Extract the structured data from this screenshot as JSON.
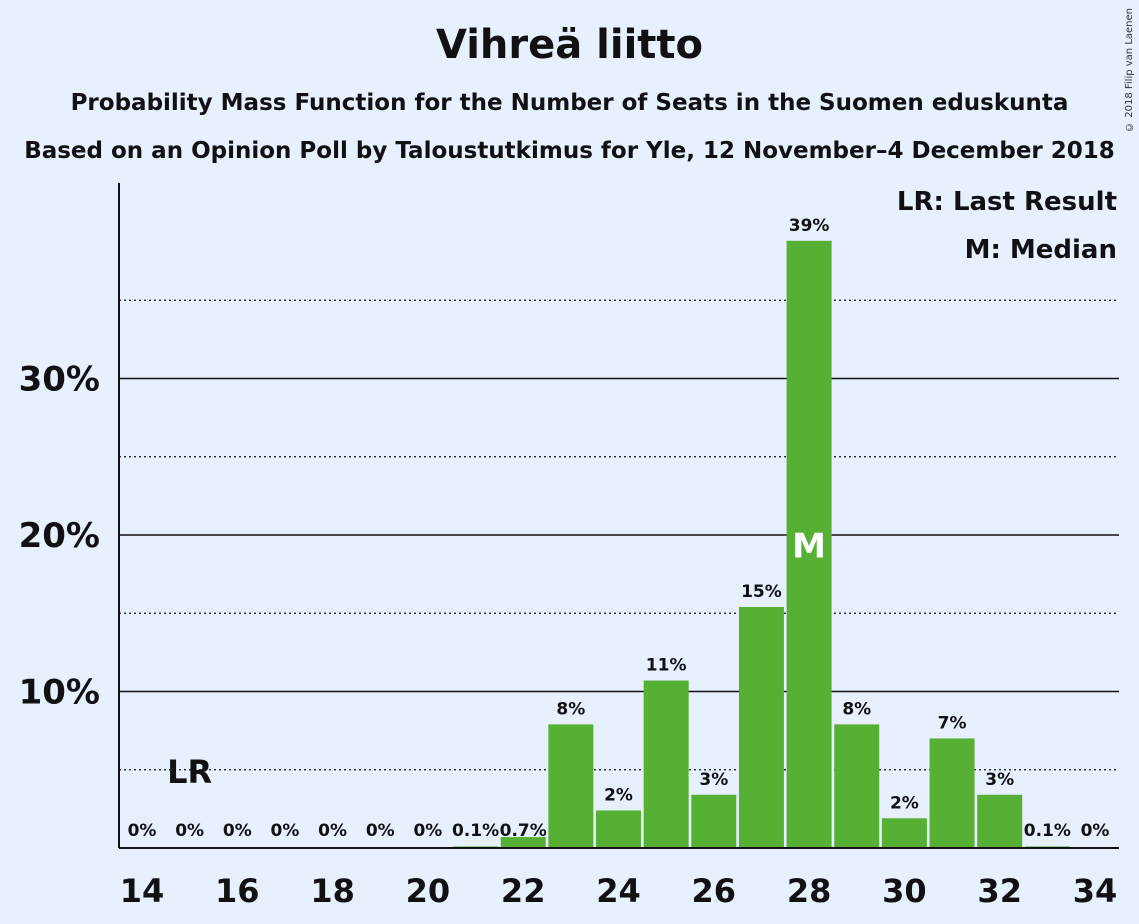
{
  "title": "Vihreä liitto",
  "subtitle_line1": "Probability Mass Function for the Number of Seats in the Suomen eduskunta",
  "subtitle_line2": "Based on an Opinion Poll by Taloustutkimus for Yle, 12 November–4 December 2018",
  "copyright": "© 2018 Filip van Laenen",
  "legend": {
    "last_result": "LR: Last Result",
    "median": "M: Median"
  },
  "colors": {
    "bar": "#55b033",
    "background": "#e6f0ff"
  },
  "chart_data": {
    "type": "bar",
    "x": [
      14,
      15,
      16,
      17,
      18,
      19,
      20,
      21,
      22,
      23,
      24,
      25,
      26,
      27,
      28,
      29,
      30,
      31,
      32,
      33,
      34
    ],
    "values": [
      0,
      0,
      0,
      0,
      0,
      0,
      0,
      0.1,
      0.7,
      7.9,
      2.4,
      10.7,
      3.4,
      15.4,
      38.8,
      7.9,
      1.9,
      7.0,
      3.4,
      0.1,
      0
    ],
    "labels": [
      "0%",
      "0%",
      "0%",
      "0%",
      "0%",
      "0%",
      "0%",
      "0.1%",
      "0.7%",
      "8%",
      "2%",
      "11%",
      "3%",
      "15%",
      "39%",
      "8%",
      "2%",
      "7%",
      "3%",
      "0.1%",
      "0%"
    ],
    "x_ticks": [
      "14",
      "16",
      "18",
      "20",
      "22",
      "24",
      "26",
      "28",
      "30",
      "32",
      "34"
    ],
    "y_ticks": [
      "10%",
      "20%",
      "30%"
    ],
    "y_tick_values": [
      10,
      20,
      30
    ],
    "y_minor_gridlines": [
      5,
      15,
      25,
      35
    ],
    "ylim": [
      0,
      42
    ],
    "last_result_seat": 15,
    "last_result_label": "LR",
    "median_seat": 28,
    "median_label": "M",
    "legend_position": "top-right"
  }
}
